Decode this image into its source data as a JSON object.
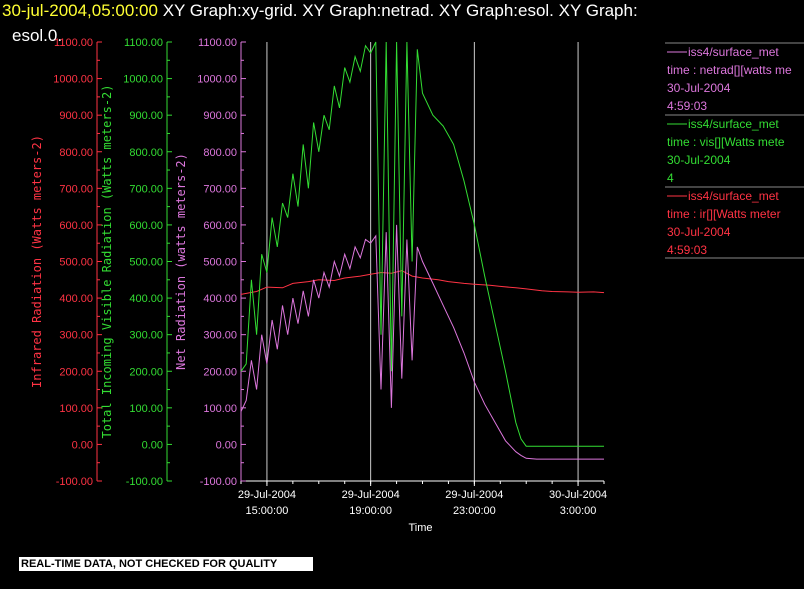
{
  "header": {
    "date_time": "30-jul-2004,05:00:00",
    "graphs_line1": " XY Graph:xy-grid.  XY Graph:netrad.  XY Graph:esol.  XY Graph:",
    "graphs_line2": "esol.0."
  },
  "notice": "REAL-TIME DATA, NOT CHECKED FOR QUALITY",
  "colors": {
    "background": "#000000",
    "infrared": "#ff3344",
    "visible": "#33dd33",
    "net": "#dd77dd",
    "grid": "#cccccc",
    "title_date": "#ffff33"
  },
  "legend": [
    {
      "source": "iss4/surface_met",
      "var": "time : netrad[][watts me",
      "date": "30-Jul-2004",
      "time": "4:59:03",
      "color": "#dd77dd"
    },
    {
      "source": "iss4/surface_met",
      "var": "time : vis[][Watts mete",
      "date": "30-Jul-2004",
      "time": "4",
      "color": "#33dd33"
    },
    {
      "source": "iss4/surface_met",
      "var": "time : ir[][Watts meter",
      "date": "30-Jul-2004",
      "time": "4:59:03",
      "color": "#ff3344"
    }
  ],
  "chart_data": {
    "type": "line",
    "xlabel": "Time",
    "x_ticks": [
      {
        "hours": 15,
        "line1": "29-Jul-2004",
        "line2": "15:00:00"
      },
      {
        "hours": 19,
        "line1": "29-Jul-2004",
        "line2": "19:00:00"
      },
      {
        "hours": 23,
        "line1": "29-Jul-2004",
        "line2": "23:00:00"
      },
      {
        "hours": 27,
        "line1": "30-Jul-2004",
        "line2": "3:00:00"
      }
    ],
    "xlim_hours_from_jul29_0000": [
      14.0,
      28.0
    ],
    "ylim": [
      -100,
      1100
    ],
    "y_ticks": [
      -100,
      0,
      100,
      200,
      300,
      400,
      500,
      600,
      700,
      800,
      900,
      1000,
      1100
    ],
    "y_tick_labels": [
      "-100.00",
      "0.00",
      "100.00",
      "200.00",
      "300.00",
      "400.00",
      "500.00",
      "600.00",
      "700.00",
      "800.00",
      "900.00",
      "1000.00",
      "1100.00"
    ],
    "axes": [
      {
        "key": "ir",
        "label": "Infrared Radiation (Watts meters-2)",
        "color": "#ff3344"
      },
      {
        "key": "vis",
        "label": "Total Incoming Visible Radiation (Watts meters-2)",
        "color": "#33dd33"
      },
      {
        "key": "net",
        "label": "Net Radiation (watts meters-2)",
        "color": "#dd77dd"
      }
    ],
    "grid": "vertical lines at x ticks",
    "series": [
      {
        "name": "time : ir[][Watts meter",
        "color": "#ff3344",
        "x": [
          14.0,
          14.6,
          15.0,
          15.6,
          16.0,
          16.6,
          17.0,
          17.6,
          18.0,
          18.6,
          19.0,
          19.4,
          19.8,
          20.2,
          20.6,
          21.0,
          21.6,
          22.0,
          22.6,
          23.0,
          23.6,
          24.0,
          24.6,
          25.0,
          25.6,
          26.0,
          26.6,
          27.0,
          27.6,
          28.0
        ],
        "y": [
          410,
          418,
          430,
          428,
          440,
          445,
          450,
          448,
          455,
          460,
          465,
          470,
          468,
          475,
          460,
          455,
          450,
          445,
          440,
          438,
          435,
          432,
          428,
          425,
          420,
          418,
          417,
          416,
          417,
          415
        ]
      },
      {
        "name": "time : vis[][Watts mete",
        "color": "#33dd33",
        "x": [
          14.0,
          14.2,
          14.4,
          14.6,
          14.8,
          15.0,
          15.2,
          15.4,
          15.6,
          15.8,
          16.0,
          16.2,
          16.4,
          16.6,
          16.8,
          17.0,
          17.2,
          17.4,
          17.6,
          17.8,
          18.0,
          18.2,
          18.4,
          18.6,
          18.8,
          19.0,
          19.2,
          19.4,
          19.6,
          19.8,
          20.0,
          20.2,
          20.4,
          20.6,
          20.8,
          21.0,
          21.4,
          21.8,
          22.2,
          22.6,
          23.0,
          23.4,
          23.8,
          24.2,
          24.6,
          24.8,
          25.0,
          25.4,
          26.0,
          26.6,
          27.0,
          27.6,
          28.0
        ],
        "y": [
          200,
          220,
          450,
          300,
          520,
          470,
          620,
          540,
          660,
          620,
          740,
          650,
          820,
          700,
          880,
          800,
          900,
          860,
          980,
          920,
          1030,
          990,
          1060,
          1020,
          1090,
          1070,
          1100,
          300,
          1100,
          200,
          1100,
          350,
          1100,
          500,
          1080,
          960,
          900,
          870,
          820,
          720,
          600,
          460,
          330,
          200,
          60,
          15,
          -5,
          -5,
          -5,
          -5,
          -5,
          -5,
          -5
        ]
      },
      {
        "name": "time : netrad[][watts me",
        "color": "#dd77dd",
        "x": [
          14.0,
          14.2,
          14.4,
          14.6,
          14.8,
          15.0,
          15.2,
          15.4,
          15.6,
          15.8,
          16.0,
          16.2,
          16.4,
          16.6,
          16.8,
          17.0,
          17.2,
          17.4,
          17.6,
          17.8,
          18.0,
          18.2,
          18.4,
          18.6,
          18.8,
          19.0,
          19.2,
          19.4,
          19.6,
          19.8,
          20.0,
          20.2,
          20.4,
          20.6,
          20.8,
          21.0,
          21.4,
          21.8,
          22.2,
          22.6,
          23.0,
          23.4,
          23.8,
          24.2,
          24.6,
          24.8,
          25.0,
          25.4,
          26.0,
          26.6,
          27.0,
          27.6,
          28.0
        ],
        "y": [
          90,
          120,
          230,
          150,
          300,
          220,
          340,
          260,
          380,
          300,
          400,
          330,
          420,
          350,
          450,
          400,
          470,
          430,
          500,
          460,
          520,
          480,
          540,
          510,
          560,
          550,
          570,
          150,
          580,
          100,
          600,
          180,
          560,
          230,
          540,
          500,
          440,
          380,
          320,
          250,
          170,
          110,
          60,
          10,
          -20,
          -30,
          -38,
          -40,
          -40,
          -40,
          -40,
          -40,
          -40
        ]
      }
    ]
  }
}
